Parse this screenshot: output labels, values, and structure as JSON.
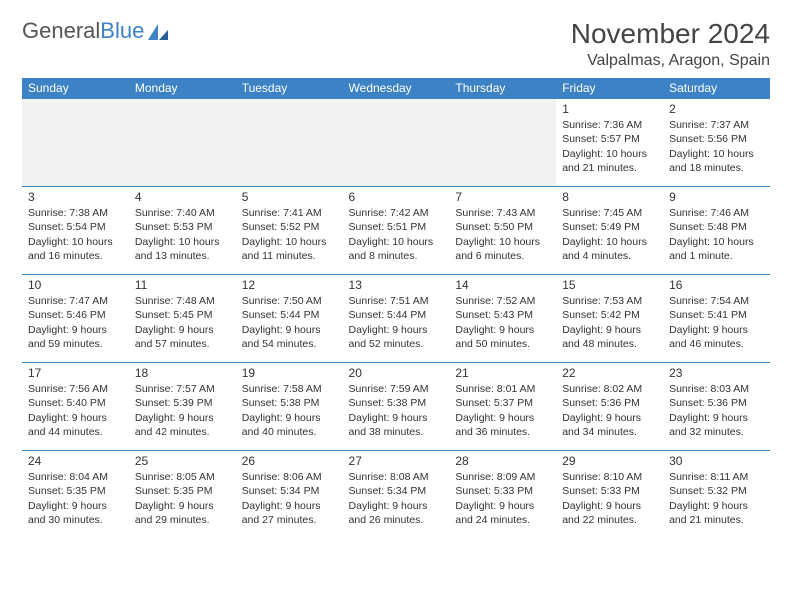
{
  "logo": {
    "word1": "General",
    "word2": "Blue"
  },
  "title": "November 2024",
  "location": "Valpalmas, Aragon, Spain",
  "colors": {
    "brand_blue": "#3d82c4",
    "text": "#333333",
    "header_text": "#444444",
    "blank_bg": "#f2f2f2",
    "white": "#ffffff"
  },
  "day_headers": [
    "Sunday",
    "Monday",
    "Tuesday",
    "Wednesday",
    "Thursday",
    "Friday",
    "Saturday"
  ],
  "weeks": [
    [
      {
        "blank": true
      },
      {
        "blank": true
      },
      {
        "blank": true
      },
      {
        "blank": true
      },
      {
        "blank": true
      },
      {
        "day": "1",
        "sunrise": "Sunrise: 7:36 AM",
        "sunset": "Sunset: 5:57 PM",
        "daylight": "Daylight: 10 hours and 21 minutes."
      },
      {
        "day": "2",
        "sunrise": "Sunrise: 7:37 AM",
        "sunset": "Sunset: 5:56 PM",
        "daylight": "Daylight: 10 hours and 18 minutes."
      }
    ],
    [
      {
        "day": "3",
        "sunrise": "Sunrise: 7:38 AM",
        "sunset": "Sunset: 5:54 PM",
        "daylight": "Daylight: 10 hours and 16 minutes."
      },
      {
        "day": "4",
        "sunrise": "Sunrise: 7:40 AM",
        "sunset": "Sunset: 5:53 PM",
        "daylight": "Daylight: 10 hours and 13 minutes."
      },
      {
        "day": "5",
        "sunrise": "Sunrise: 7:41 AM",
        "sunset": "Sunset: 5:52 PM",
        "daylight": "Daylight: 10 hours and 11 minutes."
      },
      {
        "day": "6",
        "sunrise": "Sunrise: 7:42 AM",
        "sunset": "Sunset: 5:51 PM",
        "daylight": "Daylight: 10 hours and 8 minutes."
      },
      {
        "day": "7",
        "sunrise": "Sunrise: 7:43 AM",
        "sunset": "Sunset: 5:50 PM",
        "daylight": "Daylight: 10 hours and 6 minutes."
      },
      {
        "day": "8",
        "sunrise": "Sunrise: 7:45 AM",
        "sunset": "Sunset: 5:49 PM",
        "daylight": "Daylight: 10 hours and 4 minutes."
      },
      {
        "day": "9",
        "sunrise": "Sunrise: 7:46 AM",
        "sunset": "Sunset: 5:48 PM",
        "daylight": "Daylight: 10 hours and 1 minute."
      }
    ],
    [
      {
        "day": "10",
        "sunrise": "Sunrise: 7:47 AM",
        "sunset": "Sunset: 5:46 PM",
        "daylight": "Daylight: 9 hours and 59 minutes."
      },
      {
        "day": "11",
        "sunrise": "Sunrise: 7:48 AM",
        "sunset": "Sunset: 5:45 PM",
        "daylight": "Daylight: 9 hours and 57 minutes."
      },
      {
        "day": "12",
        "sunrise": "Sunrise: 7:50 AM",
        "sunset": "Sunset: 5:44 PM",
        "daylight": "Daylight: 9 hours and 54 minutes."
      },
      {
        "day": "13",
        "sunrise": "Sunrise: 7:51 AM",
        "sunset": "Sunset: 5:44 PM",
        "daylight": "Daylight: 9 hours and 52 minutes."
      },
      {
        "day": "14",
        "sunrise": "Sunrise: 7:52 AM",
        "sunset": "Sunset: 5:43 PM",
        "daylight": "Daylight: 9 hours and 50 minutes."
      },
      {
        "day": "15",
        "sunrise": "Sunrise: 7:53 AM",
        "sunset": "Sunset: 5:42 PM",
        "daylight": "Daylight: 9 hours and 48 minutes."
      },
      {
        "day": "16",
        "sunrise": "Sunrise: 7:54 AM",
        "sunset": "Sunset: 5:41 PM",
        "daylight": "Daylight: 9 hours and 46 minutes."
      }
    ],
    [
      {
        "day": "17",
        "sunrise": "Sunrise: 7:56 AM",
        "sunset": "Sunset: 5:40 PM",
        "daylight": "Daylight: 9 hours and 44 minutes."
      },
      {
        "day": "18",
        "sunrise": "Sunrise: 7:57 AM",
        "sunset": "Sunset: 5:39 PM",
        "daylight": "Daylight: 9 hours and 42 minutes."
      },
      {
        "day": "19",
        "sunrise": "Sunrise: 7:58 AM",
        "sunset": "Sunset: 5:38 PM",
        "daylight": "Daylight: 9 hours and 40 minutes."
      },
      {
        "day": "20",
        "sunrise": "Sunrise: 7:59 AM",
        "sunset": "Sunset: 5:38 PM",
        "daylight": "Daylight: 9 hours and 38 minutes."
      },
      {
        "day": "21",
        "sunrise": "Sunrise: 8:01 AM",
        "sunset": "Sunset: 5:37 PM",
        "daylight": "Daylight: 9 hours and 36 minutes."
      },
      {
        "day": "22",
        "sunrise": "Sunrise: 8:02 AM",
        "sunset": "Sunset: 5:36 PM",
        "daylight": "Daylight: 9 hours and 34 minutes."
      },
      {
        "day": "23",
        "sunrise": "Sunrise: 8:03 AM",
        "sunset": "Sunset: 5:36 PM",
        "daylight": "Daylight: 9 hours and 32 minutes."
      }
    ],
    [
      {
        "day": "24",
        "sunrise": "Sunrise: 8:04 AM",
        "sunset": "Sunset: 5:35 PM",
        "daylight": "Daylight: 9 hours and 30 minutes."
      },
      {
        "day": "25",
        "sunrise": "Sunrise: 8:05 AM",
        "sunset": "Sunset: 5:35 PM",
        "daylight": "Daylight: 9 hours and 29 minutes."
      },
      {
        "day": "26",
        "sunrise": "Sunrise: 8:06 AM",
        "sunset": "Sunset: 5:34 PM",
        "daylight": "Daylight: 9 hours and 27 minutes."
      },
      {
        "day": "27",
        "sunrise": "Sunrise: 8:08 AM",
        "sunset": "Sunset: 5:34 PM",
        "daylight": "Daylight: 9 hours and 26 minutes."
      },
      {
        "day": "28",
        "sunrise": "Sunrise: 8:09 AM",
        "sunset": "Sunset: 5:33 PM",
        "daylight": "Daylight: 9 hours and 24 minutes."
      },
      {
        "day": "29",
        "sunrise": "Sunrise: 8:10 AM",
        "sunset": "Sunset: 5:33 PM",
        "daylight": "Daylight: 9 hours and 22 minutes."
      },
      {
        "day": "30",
        "sunrise": "Sunrise: 8:11 AM",
        "sunset": "Sunset: 5:32 PM",
        "daylight": "Daylight: 9 hours and 21 minutes."
      }
    ]
  ]
}
